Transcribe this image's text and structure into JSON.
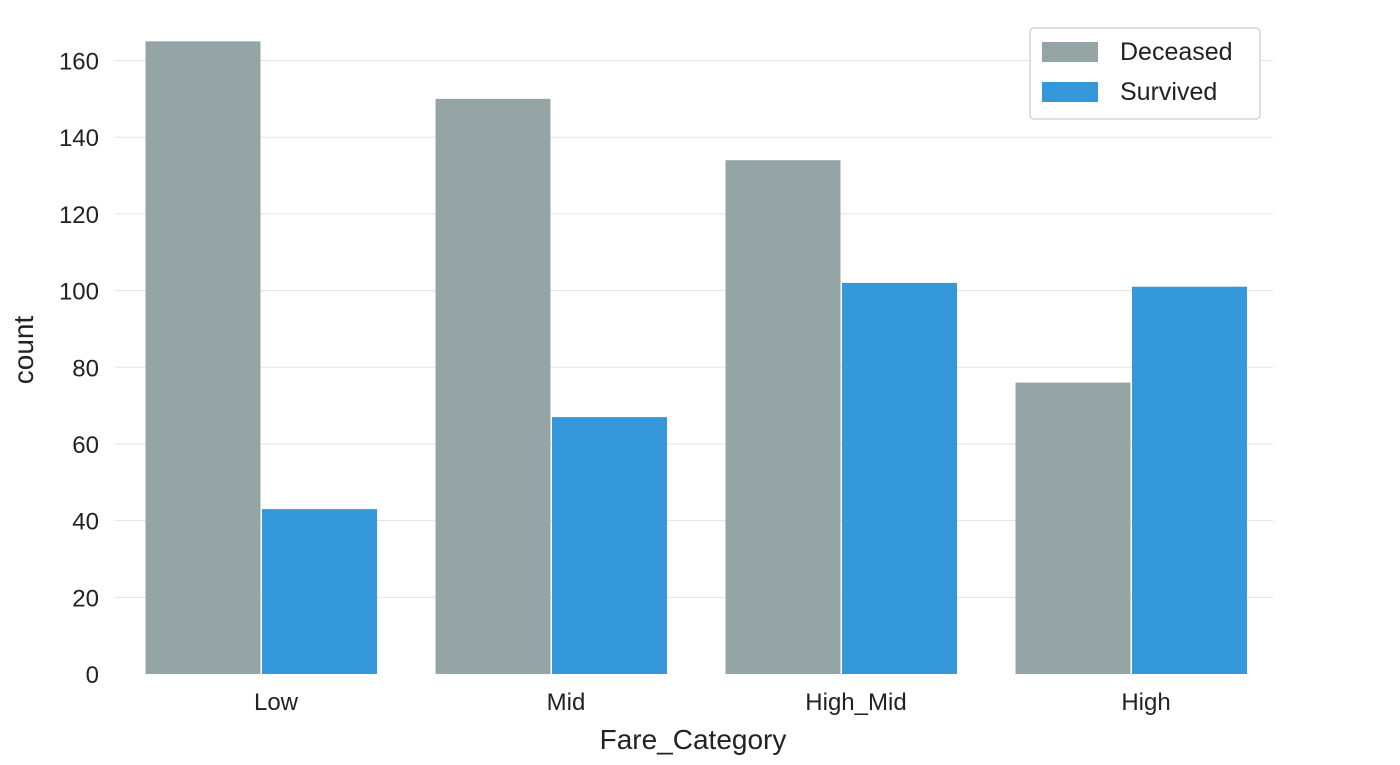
{
  "chart_data": {
    "type": "bar",
    "title": "",
    "xlabel": "Fare_Category",
    "ylabel": "count",
    "categories": [
      "Low",
      "Mid",
      "High_Mid",
      "High"
    ],
    "series": [
      {
        "name": "Deceased",
        "values": [
          165,
          150,
          134,
          76
        ],
        "color": "#95a5a6"
      },
      {
        "name": "Survived",
        "values": [
          43,
          67,
          102,
          101
        ],
        "color": "#3498db"
      }
    ],
    "ylim": [
      0,
      169
    ],
    "yticks": [
      0,
      20,
      40,
      60,
      80,
      100,
      120,
      140,
      160
    ],
    "grid": true,
    "legend_position": "top-right"
  }
}
